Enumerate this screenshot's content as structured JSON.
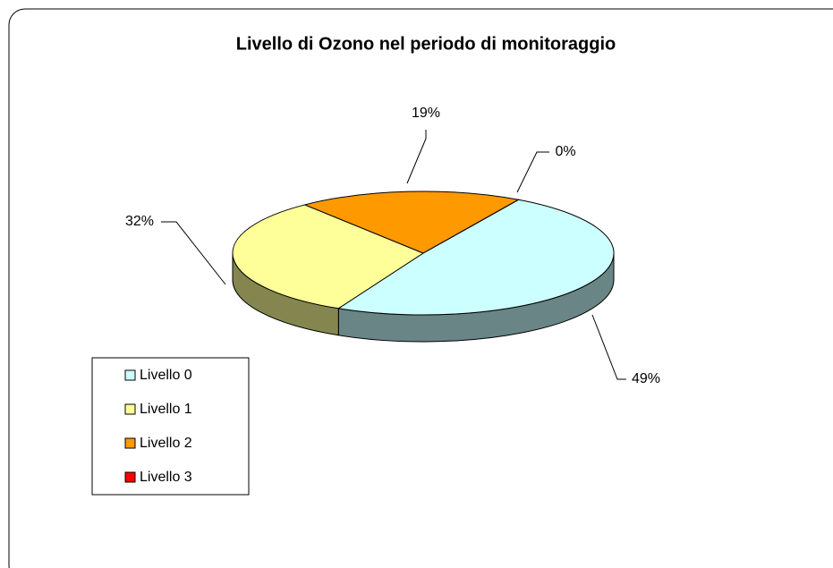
{
  "chart_data": {
    "type": "pie3d",
    "title": "Livello di Ozono nel periodo di monitoraggio",
    "categories": [
      "Livello 0",
      "Livello 1",
      "Livello 2",
      "Livello 3"
    ],
    "values": [
      49,
      32,
      19,
      0
    ],
    "value_labels": [
      "49%",
      "32%",
      "19%",
      "0%"
    ],
    "colors": [
      "#ccffff",
      "#ffff99",
      "#ff9900",
      "#ff0000"
    ],
    "legend": "left"
  }
}
